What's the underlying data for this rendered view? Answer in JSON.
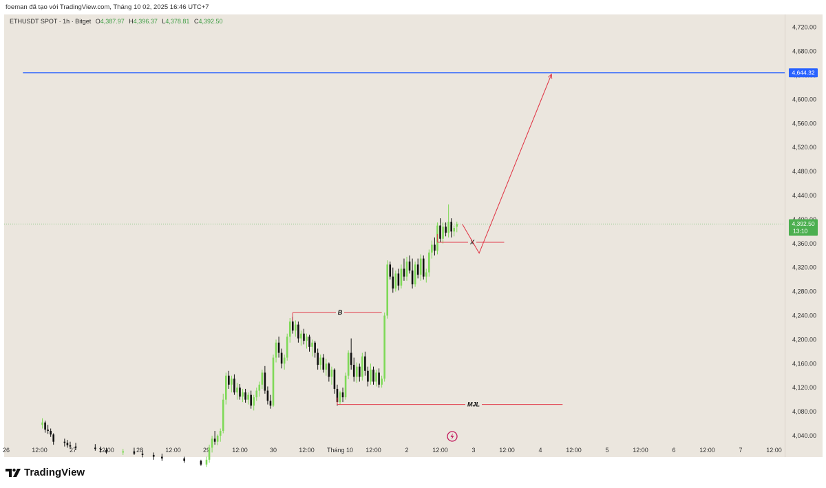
{
  "attribution": "foeman đã tạo với TradingView.com, Tháng 10 02, 2025 16:46 UTC+7",
  "header": {
    "symbol": "ETHUSDT SPOT · 1h · Bitget",
    "open_key": "O",
    "open": "4,387.97",
    "high_key": "H",
    "high": "4,396.37",
    "low_key": "L",
    "low": "4,378.81",
    "close_key": "C",
    "close": "4,392.50"
  },
  "footer": {
    "brand": "TradingView"
  },
  "colors": {
    "background": "#ebe6de",
    "up_candle": "#7ed957",
    "down_candle": "#111111",
    "horizontal_line": "#2962ff",
    "drawing": "#e03b4a",
    "last_price_label": "#4caf50"
  },
  "chart_data": {
    "type": "candlestick",
    "symbol": "ETHUSDT SPOT",
    "interval": "1h",
    "exchange": "Bitget",
    "ylim": [
      4020,
      4740
    ],
    "y_ticks": [
      "4,040.00",
      "4,080.00",
      "4,120.00",
      "4,160.00",
      "4,200.00",
      "4,240.00",
      "4,280.00",
      "4,320.00",
      "4,360.00",
      "4,400.00",
      "4,440.00",
      "4,480.00",
      "4,520.00",
      "4,560.00",
      "4,600.00",
      "4,640.00",
      "4,680.00",
      "4,720.00"
    ],
    "x_ticks": [
      "26",
      "12:00",
      "27",
      "12:00",
      "28",
      "12:00",
      "29",
      "12:00",
      "30",
      "12:00",
      "Tháng 10",
      "12:00",
      "2",
      "12:00",
      "3",
      "12:00",
      "4",
      "12:00",
      "5",
      "12:00",
      "6",
      "12:00",
      "7",
      "12:00"
    ],
    "x_tick_hours": [
      0,
      12,
      24,
      36,
      48,
      60,
      72,
      84,
      96,
      108,
      120,
      132,
      144,
      156,
      168,
      180,
      192,
      204,
      216,
      228,
      240,
      252,
      264,
      276
    ],
    "horizontal_line": {
      "value": 4644.32,
      "label": "4,644.32",
      "start_hour": 6
    },
    "last_price": {
      "value": 4392.5,
      "label": "4,392.50",
      "countdown": "13:10"
    },
    "candles": [
      [
        13,
        4058,
        4069,
        4052,
        4062
      ],
      [
        14,
        4062,
        4065,
        4045,
        4050
      ],
      [
        15,
        4050,
        4058,
        4043,
        4048
      ],
      [
        16,
        4048,
        4052,
        4038,
        4042
      ],
      [
        17,
        4042,
        4044,
        4025,
        4030
      ],
      [
        21,
        4030,
        4035,
        4022,
        4028
      ],
      [
        22,
        4028,
        4033,
        4020,
        4024
      ],
      [
        23,
        4024,
        4030,
        4018,
        4022
      ],
      [
        25,
        4022,
        4028,
        4016,
        4020
      ],
      [
        32,
        4020,
        4026,
        4015,
        4018
      ],
      [
        34,
        4018,
        4022,
        4012,
        4016
      ],
      [
        36,
        4016,
        4020,
        4010,
        4012
      ],
      [
        42,
        4012,
        4018,
        4008,
        4014
      ],
      [
        46,
        4014,
        4020,
        4008,
        4010
      ],
      [
        49,
        4010,
        4016,
        4004,
        4008
      ],
      [
        53,
        4008,
        4012,
        4000,
        4005
      ],
      [
        56,
        4005,
        4010,
        3998,
        4002
      ],
      [
        64,
        4002,
        4005,
        3995,
        3998
      ],
      [
        70,
        3998,
        4000,
        3990,
        3992
      ],
      [
        72,
        3992,
        4005,
        3988,
        4000
      ],
      [
        73,
        4000,
        4025,
        3995,
        4020
      ],
      [
        74,
        4020,
        4040,
        4012,
        4035
      ],
      [
        75,
        4035,
        4048,
        4025,
        4030
      ],
      [
        76,
        4030,
        4042,
        4024,
        4040
      ],
      [
        77,
        4040,
        4052,
        4030,
        4048
      ],
      [
        78,
        4048,
        4110,
        4044,
        4100
      ],
      [
        79,
        4100,
        4145,
        4092,
        4140
      ],
      [
        80,
        4140,
        4148,
        4118,
        4125
      ],
      [
        81,
        4125,
        4140,
        4112,
        4135
      ],
      [
        82,
        4135,
        4142,
        4108,
        4112
      ],
      [
        83,
        4112,
        4128,
        4100,
        4120
      ],
      [
        84,
        4120,
        4126,
        4100,
        4105
      ],
      [
        85,
        4105,
        4118,
        4096,
        4112
      ],
      [
        86,
        4112,
        4118,
        4095,
        4100
      ],
      [
        87,
        4100,
        4112,
        4092,
        4108
      ],
      [
        88,
        4108,
        4115,
        4085,
        4090
      ],
      [
        89,
        4090,
        4108,
        4082,
        4104
      ],
      [
        90,
        4104,
        4120,
        4098,
        4115
      ],
      [
        91,
        4115,
        4130,
        4105,
        4125
      ],
      [
        92,
        4125,
        4150,
        4118,
        4145
      ],
      [
        93,
        4145,
        4156,
        4110,
        4115
      ],
      [
        94,
        4115,
        4122,
        4092,
        4098
      ],
      [
        95,
        4098,
        4108,
        4085,
        4090
      ],
      [
        96,
        4090,
        4175,
        4088,
        4170
      ],
      [
        97,
        4170,
        4200,
        4162,
        4195
      ],
      [
        98,
        4195,
        4205,
        4170,
        4178
      ],
      [
        99,
        4178,
        4185,
        4152,
        4160
      ],
      [
        100,
        4160,
        4175,
        4150,
        4170
      ],
      [
        101,
        4170,
        4210,
        4165,
        4205
      ],
      [
        102,
        4205,
        4236,
        4195,
        4230
      ],
      [
        103,
        4230,
        4238,
        4210,
        4215
      ],
      [
        104,
        4215,
        4232,
        4205,
        4225
      ],
      [
        105,
        4225,
        4230,
        4195,
        4202
      ],
      [
        106,
        4202,
        4215,
        4190,
        4210
      ],
      [
        107,
        4210,
        4218,
        4192,
        4198
      ],
      [
        108,
        4198,
        4210,
        4185,
        4205
      ],
      [
        109,
        4205,
        4208,
        4180,
        4188
      ],
      [
        110,
        4188,
        4200,
        4172,
        4195
      ],
      [
        111,
        4195,
        4198,
        4170,
        4178
      ],
      [
        112,
        4178,
        4185,
        4150,
        4158
      ],
      [
        113,
        4158,
        4175,
        4150,
        4170
      ],
      [
        114,
        4170,
        4176,
        4145,
        4150
      ],
      [
        115,
        4150,
        4168,
        4140,
        4160
      ],
      [
        116,
        4160,
        4162,
        4130,
        4138
      ],
      [
        117,
        4138,
        4155,
        4125,
        4150
      ],
      [
        118,
        4150,
        4152,
        4110,
        4118
      ],
      [
        119,
        4118,
        4125,
        4090,
        4096
      ],
      [
        120,
        4096,
        4115,
        4092,
        4112
      ],
      [
        121,
        4112,
        4120,
        4096,
        4104
      ],
      [
        122,
        4104,
        4145,
        4100,
        4140
      ],
      [
        123,
        4140,
        4182,
        4134,
        4178
      ],
      [
        124,
        4178,
        4202,
        4150,
        4158
      ],
      [
        125,
        4158,
        4170,
        4130,
        4138
      ],
      [
        126,
        4138,
        4162,
        4128,
        4155
      ],
      [
        127,
        4155,
        4160,
        4130,
        4138
      ],
      [
        128,
        4138,
        4178,
        4132,
        4172
      ],
      [
        129,
        4172,
        4180,
        4140,
        4148
      ],
      [
        130,
        4148,
        4155,
        4122,
        4130
      ],
      [
        131,
        4130,
        4160,
        4125,
        4150
      ],
      [
        132,
        4150,
        4155,
        4125,
        4130
      ],
      [
        133,
        4130,
        4150,
        4122,
        4145
      ],
      [
        134,
        4145,
        4152,
        4120,
        4125
      ],
      [
        135,
        4125,
        4140,
        4120,
        4135
      ],
      [
        136,
        4135,
        4245,
        4130,
        4240
      ],
      [
        137,
        4240,
        4332,
        4235,
        4325
      ],
      [
        138,
        4325,
        4330,
        4300,
        4305
      ],
      [
        139,
        4305,
        4320,
        4278,
        4285
      ],
      [
        140,
        4285,
        4315,
        4280,
        4310
      ],
      [
        141,
        4310,
        4318,
        4282,
        4290
      ],
      [
        142,
        4290,
        4325,
        4285,
        4318
      ],
      [
        143,
        4318,
        4335,
        4298,
        4305
      ],
      [
        144,
        4305,
        4338,
        4298,
        4330
      ],
      [
        145,
        4330,
        4340,
        4310,
        4315
      ],
      [
        146,
        4315,
        4335,
        4285,
        4292
      ],
      [
        147,
        4292,
        4330,
        4288,
        4325
      ],
      [
        148,
        4325,
        4335,
        4302,
        4308
      ],
      [
        149,
        4308,
        4342,
        4298,
        4335
      ],
      [
        150,
        4335,
        4340,
        4300,
        4305
      ],
      [
        151,
        4305,
        4318,
        4295,
        4312
      ],
      [
        152,
        4312,
        4350,
        4305,
        4345
      ],
      [
        153,
        4345,
        4365,
        4335,
        4358
      ],
      [
        154,
        4358,
        4370,
        4340,
        4348
      ],
      [
        155,
        4348,
        4395,
        4342,
        4390
      ],
      [
        156,
        4390,
        4402,
        4362,
        4368
      ],
      [
        157,
        4368,
        4395,
        4360,
        4388
      ],
      [
        158,
        4388,
        4395,
        4372,
        4378
      ],
      [
        159,
        4378,
        4425,
        4370,
        4396
      ],
      [
        160,
        4396,
        4402,
        4370,
        4380
      ],
      [
        161,
        4380,
        4390,
        4372,
        4386
      ],
      [
        162,
        4387.97,
        4396.37,
        4378.81,
        4392.5
      ]
    ],
    "annotations": [
      {
        "type": "label",
        "text": "B",
        "line": {
          "start_hour": 103,
          "end_hour": 135,
          "value": 4245
        },
        "label_hour": 120
      },
      {
        "type": "label",
        "text": "MJL",
        "line": {
          "start_hour": 119,
          "end_hour": 200,
          "value": 4092
        },
        "label_hour": 168
      },
      {
        "type": "label",
        "text": "X",
        "line": {
          "start_hour": 155,
          "end_hour": 179,
          "value": 4362
        },
        "label_hour": 167.5
      }
    ],
    "projection_path": [
      [
        164,
        4392
      ],
      [
        170,
        4344
      ],
      [
        196,
        4642
      ]
    ]
  }
}
